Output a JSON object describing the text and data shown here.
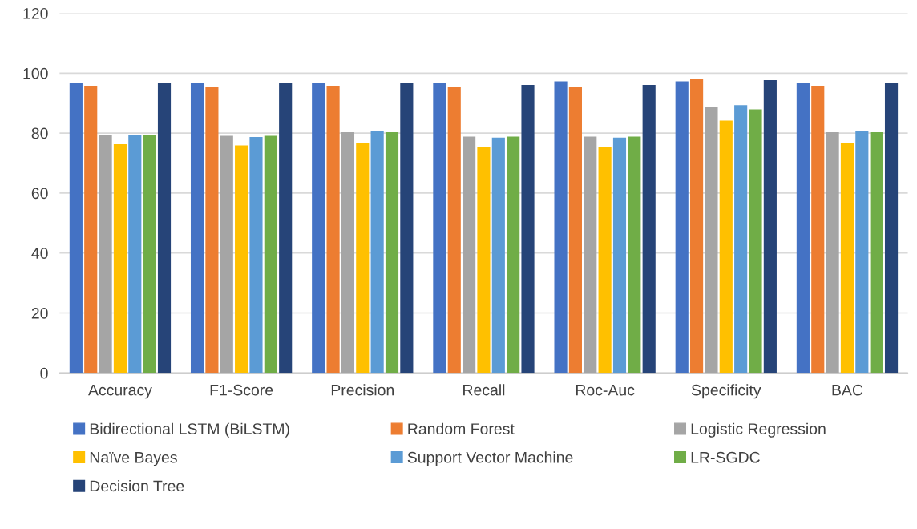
{
  "chart_data": {
    "type": "bar",
    "categories": [
      "Accuracy",
      "F1-Score",
      "Precision",
      "Recall",
      "Roc-Auc",
      "Specificity",
      "BAC"
    ],
    "series": [
      {
        "name": "Bidirectional LSTM (BiLSTM)",
        "color": "#4472c4",
        "values": [
          96.6,
          96.6,
          96.6,
          96.6,
          97.3,
          97.3,
          96.6
        ]
      },
      {
        "name": "Random Forest",
        "color": "#ed7d31",
        "values": [
          95.8,
          95.4,
          95.8,
          95.4,
          95.4,
          98.0,
          95.8
        ]
      },
      {
        "name": "Logistic Regression",
        "color": "#a5a5a5",
        "values": [
          79.5,
          79.1,
          80.3,
          78.8,
          78.8,
          88.6,
          80.3
        ]
      },
      {
        "name": "Naïve Bayes",
        "color": "#ffc000",
        "values": [
          76.3,
          75.9,
          76.6,
          75.5,
          75.5,
          84.2,
          76.6
        ]
      },
      {
        "name": "Support Vector Machine",
        "color": "#5b9bd5",
        "values": [
          79.5,
          78.7,
          80.6,
          78.5,
          78.5,
          89.3,
          80.6
        ]
      },
      {
        "name": "LR-SGDC",
        "color": "#70ad47",
        "values": [
          79.5,
          79.1,
          80.3,
          78.8,
          78.8,
          87.9,
          80.3
        ]
      },
      {
        "name": "Decision Tree",
        "color": "#264478",
        "values": [
          96.6,
          96.6,
          96.6,
          96.1,
          96.1,
          97.7,
          96.6
        ]
      }
    ],
    "ylim": [
      0,
      120
    ],
    "yticks": [
      0,
      20,
      40,
      60,
      80,
      100,
      120
    ],
    "grid": "y",
    "legend": "bottom"
  }
}
